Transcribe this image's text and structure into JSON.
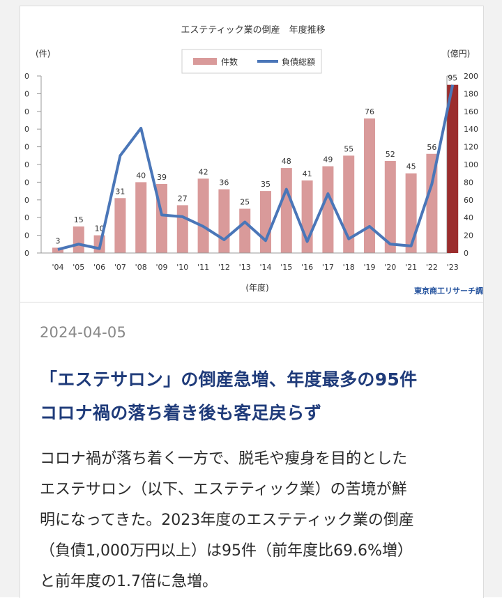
{
  "chart_data": {
    "type": "bar+line",
    "title": "エステティック業の倒産　年度推移",
    "y_left_label": "(件)",
    "y_right_label": "(億円)",
    "x_label": "(年度)",
    "source": "東京商工リサーチ調",
    "categories": [
      "'04",
      "'05",
      "'06",
      "'07",
      "'08",
      "'09",
      "'10",
      "'11",
      "'12",
      "'13",
      "'14",
      "'15",
      "'16",
      "'17",
      "'18",
      "'19",
      "'20",
      "'21",
      "'22",
      "'23"
    ],
    "series": [
      {
        "name": "件数",
        "type": "bar",
        "axis": "left",
        "color": "#d99a9a",
        "highlight_last_color": "#9b2d2d",
        "values": [
          3,
          15,
          10,
          31,
          40,
          39,
          27,
          42,
          36,
          25,
          35,
          48,
          41,
          49,
          55,
          76,
          52,
          45,
          56,
          95
        ]
      },
      {
        "name": "負債総額",
        "type": "line",
        "axis": "right",
        "color": "#4a76b8",
        "values": [
          4,
          10,
          5,
          110,
          141,
          43,
          41,
          30,
          15,
          35,
          14,
          72,
          13,
          67,
          16,
          30,
          10,
          8,
          78,
          190
        ]
      }
    ],
    "y_left_ticks_visible": [
      "0",
      "0",
      "0",
      "0",
      "0",
      "0",
      "0",
      "0",
      "0",
      "0",
      "0"
    ],
    "y_right_ticks": [
      0,
      20,
      40,
      60,
      80,
      100,
      120,
      140,
      160,
      180,
      200
    ],
    "y_left_range": [
      0,
      100
    ],
    "y_right_range": [
      0,
      200
    ],
    "legend_position": "top-center"
  },
  "article": {
    "date": "2024-04-05",
    "headline_lines": [
      "「エステサロン」の倒産急増、年度最多の95件",
      "コロナ禍の落ち着き後も客足戻らず"
    ],
    "body_lines": [
      "コロナ禍が落ち着く一方で、脱毛や痩身を目的とした",
      "エステサロン（以下、エステティック業）の苦境が鮮",
      "明になってきた。2023年度のエステティック業の倒産",
      "（負債1,000万円以上）は95件（前年度比69.6%増）",
      "と前年度の1.7倍に急増。"
    ]
  }
}
